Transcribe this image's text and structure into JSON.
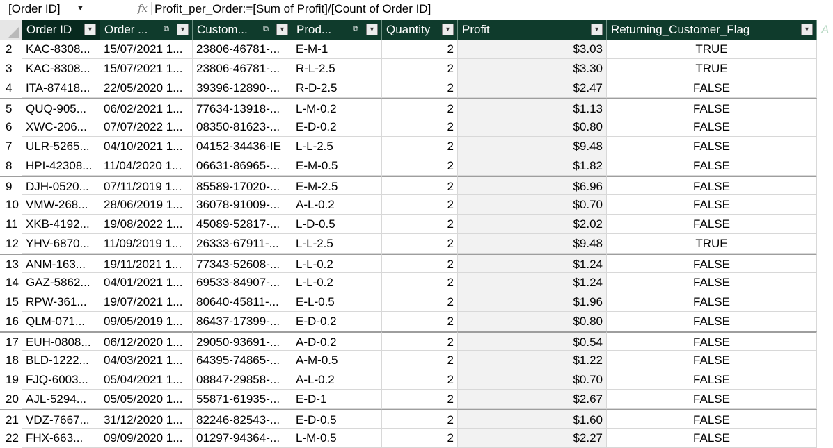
{
  "formula_bar": {
    "name_box": "[Order ID]",
    "fx_label": "fx",
    "formula": "Profit_per_Order:=[Sum of Profit]/[Count of Order ID]"
  },
  "columns": [
    {
      "label": "Order ID",
      "has_link_icon": false
    },
    {
      "label": "Order ...",
      "has_link_icon": true
    },
    {
      "label": "Custom...",
      "has_link_icon": true
    },
    {
      "label": "Prod...",
      "has_link_icon": true
    },
    {
      "label": "Quantity",
      "has_link_icon": false
    },
    {
      "label": "Profit",
      "has_link_icon": false
    },
    {
      "label": "Returning_Customer_Flag",
      "has_link_icon": false
    },
    {
      "label": "A",
      "has_link_icon": false
    }
  ],
  "rows": [
    {
      "num": "2",
      "order_id": "KAC-8308...",
      "order_date": "15/07/2021 1...",
      "customer": "23806-46781-...",
      "product": "E-M-1",
      "quantity": "2",
      "profit": "$3.03",
      "returning": "TRUE"
    },
    {
      "num": "3",
      "order_id": "KAC-8308...",
      "order_date": "15/07/2021 1...",
      "customer": "23806-46781-...",
      "product": "R-L-2.5",
      "quantity": "2",
      "profit": "$3.30",
      "returning": "TRUE"
    },
    {
      "num": "4",
      "order_id": "ITA-87418...",
      "order_date": "22/05/2020 1...",
      "customer": "39396-12890-...",
      "product": "R-D-2.5",
      "quantity": "2",
      "profit": "$2.47",
      "returning": "FALSE"
    },
    {
      "num": "5",
      "order_id": "QUQ-905...",
      "order_date": "06/02/2021 1...",
      "customer": "77634-13918-...",
      "product": "L-M-0.2",
      "quantity": "2",
      "profit": "$1.13",
      "returning": "FALSE"
    },
    {
      "num": "6",
      "order_id": "XWC-206...",
      "order_date": "07/07/2022 1...",
      "customer": "08350-81623-...",
      "product": "E-D-0.2",
      "quantity": "2",
      "profit": "$0.80",
      "returning": "FALSE"
    },
    {
      "num": "7",
      "order_id": "ULR-5265...",
      "order_date": "04/10/2021 1...",
      "customer": "04152-34436-IE",
      "product": "L-L-2.5",
      "quantity": "2",
      "profit": "$9.48",
      "returning": "FALSE"
    },
    {
      "num": "8",
      "order_id": "HPI-42308...",
      "order_date": "11/04/2020 1...",
      "customer": "06631-86965-...",
      "product": "E-M-0.5",
      "quantity": "2",
      "profit": "$1.82",
      "returning": "FALSE"
    },
    {
      "num": "9",
      "order_id": "DJH-0520...",
      "order_date": "07/11/2019 1...",
      "customer": "85589-17020-...",
      "product": "E-M-2.5",
      "quantity": "2",
      "profit": "$6.96",
      "returning": "FALSE"
    },
    {
      "num": "10",
      "order_id": "VMW-268...",
      "order_date": "28/06/2019 1...",
      "customer": "36078-91009-...",
      "product": "A-L-0.2",
      "quantity": "2",
      "profit": "$0.70",
      "returning": "FALSE"
    },
    {
      "num": "11",
      "order_id": "XKB-4192...",
      "order_date": "19/08/2022 1...",
      "customer": "45089-52817-...",
      "product": "L-D-0.5",
      "quantity": "2",
      "profit": "$2.02",
      "returning": "FALSE"
    },
    {
      "num": "12",
      "order_id": "YHV-6870...",
      "order_date": "11/09/2019 1...",
      "customer": "26333-67911-...",
      "product": "L-L-2.5",
      "quantity": "2",
      "profit": "$9.48",
      "returning": "TRUE"
    },
    {
      "num": "13",
      "order_id": "ANM-163...",
      "order_date": "19/11/2021 1...",
      "customer": "77343-52608-...",
      "product": "L-L-0.2",
      "quantity": "2",
      "profit": "$1.24",
      "returning": "FALSE"
    },
    {
      "num": "14",
      "order_id": "GAZ-5862...",
      "order_date": "04/01/2021 1...",
      "customer": "69533-84907-...",
      "product": "L-L-0.2",
      "quantity": "2",
      "profit": "$1.24",
      "returning": "FALSE"
    },
    {
      "num": "15",
      "order_id": "RPW-361...",
      "order_date": "19/07/2021 1...",
      "customer": "80640-45811-...",
      "product": "E-L-0.5",
      "quantity": "2",
      "profit": "$1.96",
      "returning": "FALSE"
    },
    {
      "num": "16",
      "order_id": "QLM-071...",
      "order_date": "09/05/2019 1...",
      "customer": "86437-17399-...",
      "product": "E-D-0.2",
      "quantity": "2",
      "profit": "$0.80",
      "returning": "FALSE"
    },
    {
      "num": "17",
      "order_id": "EUH-0808...",
      "order_date": "06/12/2020 1...",
      "customer": "29050-93691-...",
      "product": "A-D-0.2",
      "quantity": "2",
      "profit": "$0.54",
      "returning": "FALSE"
    },
    {
      "num": "18",
      "order_id": "BLD-1222...",
      "order_date": "04/03/2021 1...",
      "customer": "64395-74865-...",
      "product": "A-M-0.5",
      "quantity": "2",
      "profit": "$1.22",
      "returning": "FALSE"
    },
    {
      "num": "19",
      "order_id": "FJQ-6003...",
      "order_date": "05/04/2021 1...",
      "customer": "08847-29858-...",
      "product": "A-L-0.2",
      "quantity": "2",
      "profit": "$0.70",
      "returning": "FALSE"
    },
    {
      "num": "20",
      "order_id": "AJL-5294...",
      "order_date": "05/05/2020 1...",
      "customer": "55871-61935-...",
      "product": "E-D-1",
      "quantity": "2",
      "profit": "$2.67",
      "returning": "FALSE"
    },
    {
      "num": "21",
      "order_id": "VDZ-7667...",
      "order_date": "31/12/2020 1...",
      "customer": "82246-82543-...",
      "product": "E-D-0.5",
      "quantity": "2",
      "profit": "$1.60",
      "returning": "FALSE"
    },
    {
      "num": "22",
      "order_id": "FHX-663...",
      "order_date": "09/09/2020 1...",
      "customer": "01297-94364-...",
      "product": "L-M-0.5",
      "quantity": "2",
      "profit": "$2.27",
      "returning": "FALSE"
    }
  ],
  "banded_rows": [
    "5",
    "9",
    "13",
    "17",
    "21"
  ],
  "colors": {
    "header_bg": "#0f3b2c",
    "header_selected_bg": "#07291e",
    "header_text": "#ffffff",
    "ghost_header_text": "#b8d9c4",
    "profit_column_bg": "#f2f2f2",
    "gridline": "#d8d8d8"
  },
  "icons": {
    "name_box_dropdown": "chevron-down-icon",
    "relationship": "table-relationship-icon",
    "filter_dropdown": "filter-dropdown-icon"
  }
}
